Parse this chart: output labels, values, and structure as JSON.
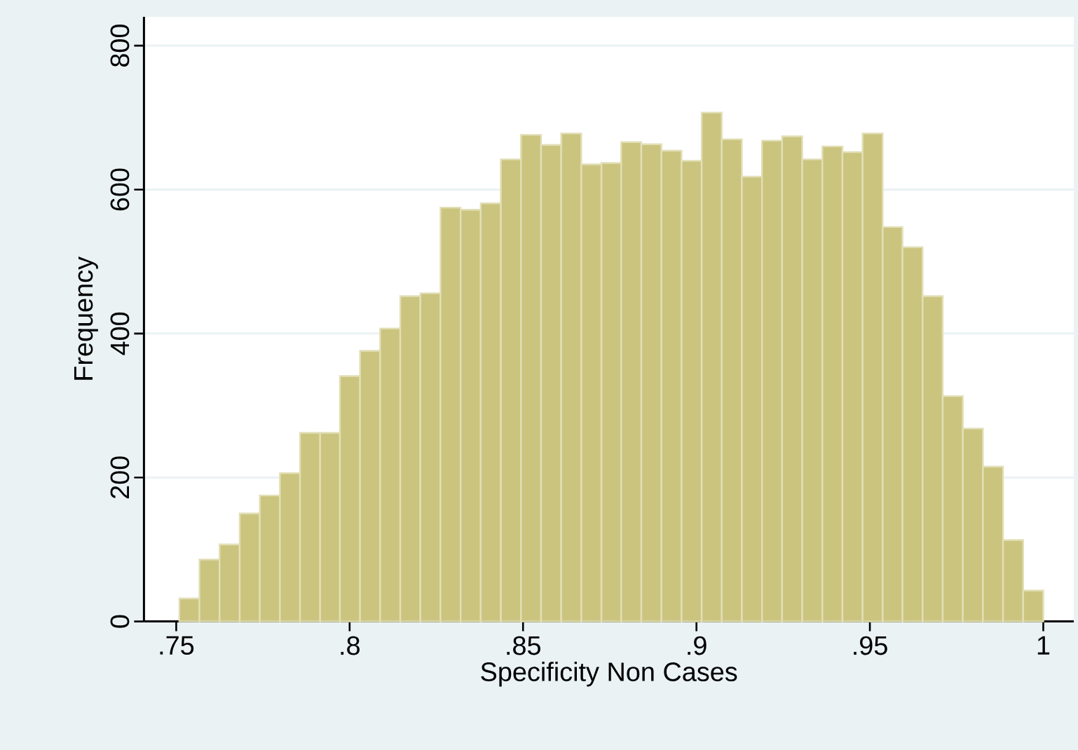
{
  "chart_data": {
    "type": "histogram",
    "xlabel": "Specificity Non Cases",
    "ylabel": "Frequency",
    "bins": [
      0.7509,
      0.7567,
      0.7625,
      0.7683,
      0.7741,
      0.7799,
      0.7857,
      0.7915,
      0.7972,
      0.803,
      0.8088,
      0.8146,
      0.8204,
      0.8262,
      0.832,
      0.8378,
      0.8436,
      0.8494,
      0.8552,
      0.861,
      0.8668,
      0.8726,
      0.8783,
      0.8841,
      0.8899,
      0.8957,
      0.9015,
      0.9073,
      0.9131,
      0.9189,
      0.9247,
      0.9305,
      0.9363,
      0.9421,
      0.9479,
      0.9537,
      0.9594,
      0.9652,
      0.971,
      0.9768,
      0.9826,
      0.9884,
      0.9942,
      1.0
    ],
    "values": [
      32,
      86,
      107,
      150,
      175,
      206,
      262,
      262,
      341,
      376,
      407,
      452,
      456,
      575,
      572,
      581,
      642,
      676,
      662,
      678,
      635,
      637,
      666,
      663,
      654,
      640,
      707,
      670,
      618,
      668,
      674,
      642,
      660,
      652,
      678,
      548,
      520,
      452,
      313,
      268,
      215,
      113,
      43
    ],
    "color": "#cbc47e",
    "xlim": [
      0.7407,
      1.0088
    ],
    "ylim": [
      0,
      840
    ],
    "xticks": [
      {
        "value": 0.75,
        "label": ".75"
      },
      {
        "value": 0.8,
        "label": ".8"
      },
      {
        "value": 0.85,
        "label": ".85"
      },
      {
        "value": 0.9,
        "label": ".9"
      },
      {
        "value": 0.95,
        "label": ".95"
      },
      1
    ],
    "yticks": [
      0,
      200,
      400,
      600,
      800
    ],
    "grid": "y"
  }
}
